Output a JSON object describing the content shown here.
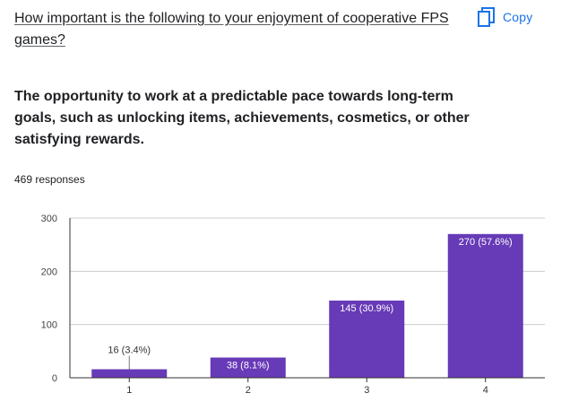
{
  "question": {
    "title": "How important is the following to your enjoyment of cooperative FPS games?"
  },
  "copy_button": {
    "label": "Copy",
    "icon": "copy-icon",
    "color": "#1a73e8"
  },
  "subtitle": "The opportunity to work at a predictable pace towards long-term goals, such as unlocking items, achievements, cosmetics, or other satisfying rewards.",
  "responses_text": "469 responses",
  "chart_data": {
    "type": "bar",
    "categories": [
      "1",
      "2",
      "3",
      "4"
    ],
    "values": [
      16,
      38,
      145,
      270
    ],
    "data_labels": [
      "16 (3.4%)",
      "38 (8.1%)",
      "145 (30.9%)",
      "270 (57.6%)"
    ],
    "yticks": [
      0,
      100,
      200,
      300
    ],
    "ylim": [
      0,
      300
    ],
    "grid": true,
    "bar_color": "#673ab7",
    "title": "",
    "xlabel": "",
    "ylabel": ""
  }
}
